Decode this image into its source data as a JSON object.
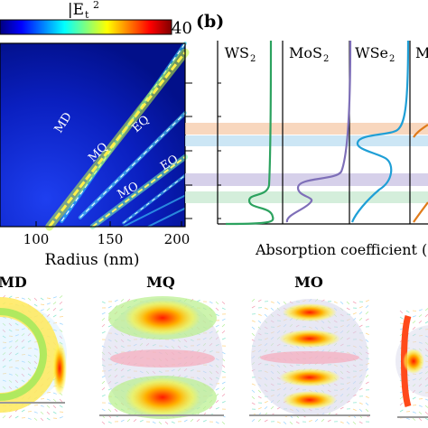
{
  "colorbar": {
    "label": "|E_t|^2",
    "label_main": "|E",
    "label_sub": "t",
    "label_sup": "2",
    "max_label": "40",
    "stops": [
      "#00007f",
      "#0000ff",
      "#007fff",
      "#00ffff",
      "#7fff7f",
      "#ffff00",
      "#ff7f00",
      "#ff0000",
      "#7f0000"
    ]
  },
  "panel_a": {
    "xlabel": "Radius (nm)",
    "xticks": [
      "100",
      "150",
      "200"
    ],
    "mode_labels": [
      "MD",
      "MQ",
      "MO",
      "EQ",
      "EO"
    ]
  },
  "panel_b": {
    "tag": "(b)",
    "columns": [
      {
        "name": "WS",
        "sub": "2",
        "color": "#2ca25f"
      },
      {
        "name": "MoS",
        "sub": "2",
        "color": "#7e6fb8"
      },
      {
        "name": "WSe",
        "sub": "2",
        "color": "#1f9fd6"
      },
      {
        "name": "M",
        "sub": "",
        "color": "#e07b1a"
      }
    ],
    "band_colors": [
      "#f6c9a8",
      "#bfe0f3",
      "#cfc8e6",
      "#cdebd5"
    ],
    "xlabel": "Absorption coefficient (a.u"
  },
  "maps": [
    {
      "label": "MD"
    },
    {
      "label": "MQ"
    },
    {
      "label": "MO"
    },
    {
      "label": ""
    }
  ],
  "chart_data": [
    {
      "type": "heatmap",
      "title": "|Et|^2",
      "xlabel": "Radius (nm)",
      "ylabel": "",
      "xlim": [
        50,
        200
      ],
      "clim": [
        0,
        40
      ],
      "series": [
        {
          "name": "MD",
          "x": [
            100,
            200
          ],
          "y_frac": [
            0.97,
            0.0
          ]
        },
        {
          "name": "MQ",
          "x": [
            90,
            200
          ],
          "y_frac": [
            1.0,
            0.05
          ]
        },
        {
          "name": "EQ",
          "x": [
            115,
            200
          ],
          "y_frac": [
            0.95,
            0.38
          ]
        },
        {
          "name": "MO",
          "x": [
            125,
            200
          ],
          "y_frac": [
            1.0,
            0.62
          ]
        },
        {
          "name": "EO",
          "x": [
            150,
            200
          ],
          "y_frac": [
            0.98,
            0.72
          ]
        }
      ]
    },
    {
      "type": "line",
      "title": "",
      "xlabel": "Absorption coefficient (a.u",
      "series": [
        {
          "name": "WS2",
          "values": []
        },
        {
          "name": "MoS2",
          "values": []
        },
        {
          "name": "WSe2",
          "values": []
        }
      ]
    }
  ]
}
